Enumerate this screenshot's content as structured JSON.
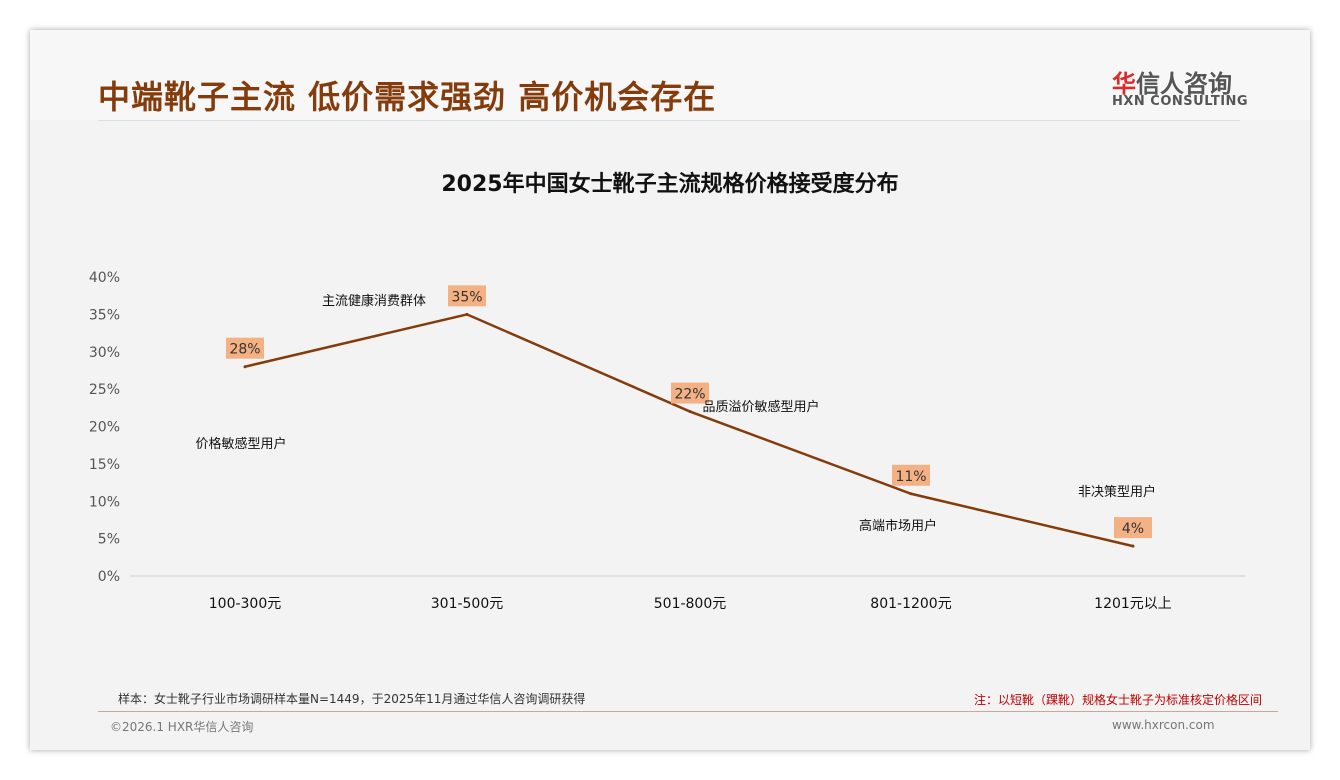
{
  "header": {
    "title": "中端靴子主流 低价需求强劲 高价机会存在",
    "logo_cn": "信人咨询",
    "logo_cn_mark": "华",
    "logo_en": "HXN CONSULTING"
  },
  "chart_data": {
    "type": "line",
    "title": "2025年中国女士靴子主流规格价格接受度分布",
    "categories": [
      "100-300元",
      "301-500元",
      "501-800元",
      "801-1200元",
      "1201元以上"
    ],
    "values": [
      28,
      35,
      22,
      11,
      4
    ],
    "data_labels": [
      "28%",
      "35%",
      "22%",
      "11%",
      "4%"
    ],
    "annotations": [
      "价格敏感型用户",
      "主流健康消费群体",
      "品质溢价敏感型用户",
      "高端市场用户",
      "非决策型用户"
    ],
    "yticks": [
      "0%",
      "5%",
      "10%",
      "15%",
      "20%",
      "25%",
      "30%",
      "35%",
      "40%"
    ],
    "ylim": [
      0,
      40
    ],
    "line_color": "#843c0c",
    "label_bg": "#f4b183"
  },
  "footer": {
    "sample": "样本：女士靴子行业市场调研样本量N=1449，于2025年11月通过华信人咨询调研获得",
    "note": "注：以短靴（踝靴）规格女士靴子为标准核定价格区间",
    "copyright": "©2026.1 HXR华信人咨询",
    "url": "www.hxrcon.com"
  }
}
